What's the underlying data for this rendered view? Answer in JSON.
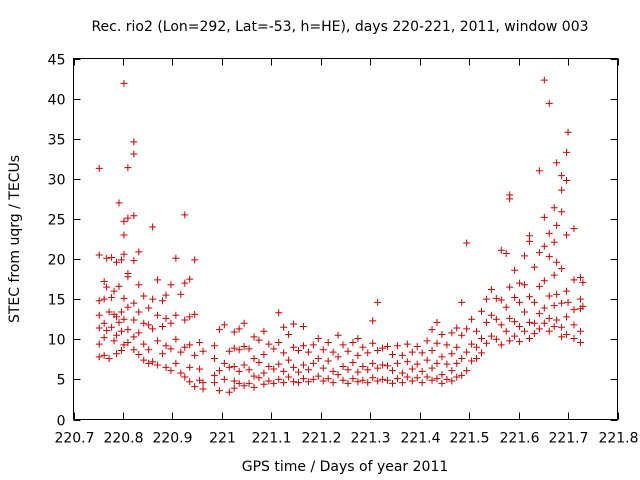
{
  "chart_data": {
    "type": "scatter",
    "title": "Rec. rio2 (Lon=292, Lat=-53, h=HE), days 220-221, 2011, window 003",
    "xlabel": "GPS time / Days of year 2011",
    "ylabel": "STEC from uqrg / TECUs",
    "xlim": [
      220.7,
      221.8
    ],
    "ylim": [
      0,
      45
    ],
    "x_ticks": [
      220.7,
      220.8,
      220.9,
      221,
      221.1,
      221.2,
      221.3,
      221.4,
      221.5,
      221.6,
      221.7,
      221.8
    ],
    "x_tick_labels": [
      "220.7",
      "220.8",
      "220.9",
      "221",
      "221.1",
      "221.2",
      "221.3",
      "221.4",
      "221.5",
      "221.6",
      "221.7",
      "221.8"
    ],
    "y_ticks": [
      0,
      5,
      10,
      15,
      20,
      25,
      30,
      35,
      40,
      45
    ],
    "y_tick_labels": [
      "0",
      "5",
      "10",
      "15",
      "20",
      "25",
      "30",
      "35",
      "40",
      "45"
    ],
    "grid": false,
    "legend": "none",
    "marker": "plus",
    "color": "#cc0000",
    "points": [
      [
        220.752,
        31.3
      ],
      [
        220.752,
        20.5
      ],
      [
        220.752,
        14.8
      ],
      [
        220.752,
        13.0
      ],
      [
        220.752,
        11.4
      ],
      [
        220.752,
        9.4
      ],
      [
        220.752,
        7.8
      ],
      [
        220.762,
        17.2
      ],
      [
        220.762,
        15.0
      ],
      [
        220.762,
        12.0
      ],
      [
        220.762,
        10.2
      ],
      [
        220.762,
        8.0
      ],
      [
        220.767,
        20.1
      ],
      [
        220.767,
        16.5
      ],
      [
        220.767,
        11.1
      ],
      [
        220.772,
        13.4
      ],
      [
        220.772,
        7.6
      ],
      [
        220.777,
        20.2
      ],
      [
        220.777,
        15.2
      ],
      [
        220.777,
        11.5
      ],
      [
        220.782,
        16.0
      ],
      [
        220.782,
        13.1
      ],
      [
        220.782,
        9.8
      ],
      [
        220.787,
        19.6
      ],
      [
        220.787,
        12.8
      ],
      [
        220.787,
        10.5
      ],
      [
        220.787,
        8.2
      ],
      [
        220.792,
        27.0
      ],
      [
        220.792,
        16.6
      ],
      [
        220.792,
        12.1
      ],
      [
        220.797,
        19.9
      ],
      [
        220.797,
        13.4
      ],
      [
        220.797,
        11.0
      ],
      [
        220.797,
        8.6
      ],
      [
        220.802,
        41.9
      ],
      [
        220.802,
        24.7
      ],
      [
        220.802,
        23.0
      ],
      [
        220.802,
        20.6
      ],
      [
        220.802,
        15.1
      ],
      [
        220.802,
        12.5
      ],
      [
        220.802,
        9.3
      ],
      [
        220.81,
        31.4
      ],
      [
        220.81,
        25.1
      ],
      [
        220.81,
        18.2
      ],
      [
        220.81,
        17.8
      ],
      [
        220.81,
        14.0
      ],
      [
        220.81,
        11.2
      ],
      [
        220.81,
        9.6
      ],
      [
        220.822,
        34.6
      ],
      [
        220.822,
        33.1
      ],
      [
        220.822,
        25.4
      ],
      [
        220.822,
        19.8
      ],
      [
        220.822,
        14.5
      ],
      [
        220.822,
        12.4
      ],
      [
        220.822,
        10.3
      ],
      [
        220.822,
        8.7
      ],
      [
        220.832,
        20.9
      ],
      [
        220.832,
        16.8
      ],
      [
        220.832,
        13.4
      ],
      [
        220.832,
        10.8
      ],
      [
        220.832,
        8.1
      ],
      [
        220.842,
        15.4
      ],
      [
        220.842,
        12.0
      ],
      [
        220.842,
        9.4
      ],
      [
        220.842,
        7.4
      ],
      [
        220.852,
        13.9
      ],
      [
        220.852,
        11.8
      ],
      [
        220.852,
        8.7
      ],
      [
        220.852,
        7.0
      ],
      [
        220.86,
        24.0
      ],
      [
        220.86,
        15.0
      ],
      [
        220.86,
        11.3
      ],
      [
        220.86,
        7.2
      ],
      [
        220.87,
        17.4
      ],
      [
        220.87,
        13.0
      ],
      [
        220.87,
        9.8
      ],
      [
        220.87,
        6.8
      ],
      [
        220.88,
        14.8
      ],
      [
        220.88,
        11.6
      ],
      [
        220.88,
        8.2
      ],
      [
        220.887,
        15.5
      ],
      [
        220.887,
        12.6
      ],
      [
        220.887,
        9.2
      ],
      [
        220.887,
        6.5
      ],
      [
        220.897,
        16.8
      ],
      [
        220.897,
        12.0
      ],
      [
        220.897,
        8.8
      ],
      [
        220.897,
        6.1
      ],
      [
        220.907,
        20.1
      ],
      [
        220.907,
        13.0
      ],
      [
        220.907,
        10.0
      ],
      [
        220.907,
        7.0
      ],
      [
        220.917,
        15.6
      ],
      [
        220.917,
        8.4
      ],
      [
        220.917,
        5.8
      ],
      [
        220.925,
        25.5
      ],
      [
        220.925,
        17.0
      ],
      [
        220.925,
        12.4
      ],
      [
        220.925,
        9.0
      ],
      [
        220.925,
        5.3
      ],
      [
        220.935,
        17.5
      ],
      [
        220.935,
        12.8
      ],
      [
        220.935,
        9.3
      ],
      [
        220.935,
        6.5
      ],
      [
        220.935,
        4.7
      ],
      [
        220.945,
        19.9
      ],
      [
        220.945,
        13.1
      ],
      [
        220.945,
        8.0
      ],
      [
        220.945,
        4.1
      ],
      [
        220.955,
        9.6
      ],
      [
        220.955,
        6.3
      ],
      [
        220.955,
        4.9
      ],
      [
        220.962,
        8.5
      ],
      [
        220.962,
        4.6
      ],
      [
        220.962,
        3.8
      ],
      [
        220.985,
        9.2
      ],
      [
        220.985,
        7.6
      ],
      [
        220.985,
        5.5
      ],
      [
        220.985,
        4.6
      ],
      [
        220.995,
        11.2
      ],
      [
        220.995,
        6.1
      ],
      [
        220.995,
        3.6
      ],
      [
        221.005,
        11.8
      ],
      [
        221.005,
        7.0
      ],
      [
        221.005,
        5.0
      ],
      [
        221.015,
        8.5
      ],
      [
        221.015,
        6.5
      ],
      [
        221.015,
        3.4
      ],
      [
        221.025,
        10.9
      ],
      [
        221.025,
        8.9
      ],
      [
        221.025,
        6.6
      ],
      [
        221.025,
        4.8
      ],
      [
        221.025,
        3.9
      ],
      [
        221.035,
        11.3
      ],
      [
        221.035,
        8.7
      ],
      [
        221.035,
        6.0
      ],
      [
        221.035,
        4.5
      ],
      [
        221.045,
        12.0
      ],
      [
        221.045,
        9.1
      ],
      [
        221.045,
        6.8
      ],
      [
        221.045,
        4.2
      ],
      [
        221.055,
        8.8
      ],
      [
        221.055,
        6.2
      ],
      [
        221.055,
        4.5
      ],
      [
        221.065,
        10.3
      ],
      [
        221.065,
        7.6
      ],
      [
        221.065,
        5.4
      ],
      [
        221.065,
        4.0
      ],
      [
        221.075,
        9.9
      ],
      [
        221.075,
        7.1
      ],
      [
        221.075,
        5.2
      ],
      [
        221.085,
        11.0
      ],
      [
        221.085,
        8.1
      ],
      [
        221.085,
        5.8
      ],
      [
        221.085,
        4.4
      ],
      [
        221.095,
        9.4
      ],
      [
        221.095,
        6.6
      ],
      [
        221.095,
        4.8
      ],
      [
        221.105,
        8.8
      ],
      [
        221.105,
        6.3
      ],
      [
        221.105,
        4.5
      ],
      [
        221.115,
        13.3
      ],
      [
        221.115,
        9.6
      ],
      [
        221.115,
        6.9
      ],
      [
        221.115,
        5.0
      ],
      [
        221.125,
        11.5
      ],
      [
        221.125,
        8.3
      ],
      [
        221.125,
        6.0
      ],
      [
        221.125,
        4.6
      ],
      [
        221.135,
        10.6
      ],
      [
        221.135,
        7.4
      ],
      [
        221.135,
        5.3
      ],
      [
        221.145,
        11.9
      ],
      [
        221.145,
        9.0
      ],
      [
        221.145,
        6.5
      ],
      [
        221.145,
        4.7
      ],
      [
        221.155,
        8.6
      ],
      [
        221.155,
        5.9
      ],
      [
        221.155,
        4.6
      ],
      [
        221.165,
        11.6
      ],
      [
        221.165,
        9.2
      ],
      [
        221.165,
        6.8
      ],
      [
        221.165,
        5.1
      ],
      [
        221.175,
        8.4
      ],
      [
        221.175,
        6.2
      ],
      [
        221.175,
        4.7
      ],
      [
        221.185,
        9.3
      ],
      [
        221.185,
        7.0
      ],
      [
        221.185,
        5.0
      ],
      [
        221.195,
        10.1
      ],
      [
        221.195,
        7.6
      ],
      [
        221.195,
        5.4
      ],
      [
        221.205,
        8.7
      ],
      [
        221.205,
        6.4
      ],
      [
        221.205,
        4.8
      ],
      [
        221.215,
        9.6
      ],
      [
        221.215,
        7.3
      ],
      [
        221.215,
        5.1
      ],
      [
        221.225,
        8.4
      ],
      [
        221.225,
        6.0
      ],
      [
        221.225,
        4.6
      ],
      [
        221.235,
        10.5
      ],
      [
        221.235,
        7.8
      ],
      [
        221.235,
        5.6
      ],
      [
        221.245,
        9.3
      ],
      [
        221.245,
        6.6
      ],
      [
        221.245,
        4.9
      ],
      [
        221.255,
        8.5
      ],
      [
        221.255,
        6.2
      ],
      [
        221.255,
        4.5
      ],
      [
        221.265,
        9.6
      ],
      [
        221.265,
        7.1
      ],
      [
        221.265,
        5.1
      ],
      [
        221.275,
        10.1
      ],
      [
        221.275,
        8.0
      ],
      [
        221.275,
        5.9
      ],
      [
        221.275,
        4.7
      ],
      [
        221.285,
        9.0
      ],
      [
        221.285,
        6.6
      ],
      [
        221.285,
        4.9
      ],
      [
        221.295,
        8.3
      ],
      [
        221.295,
        6.2
      ],
      [
        221.295,
        4.6
      ],
      [
        221.305,
        12.3
      ],
      [
        221.305,
        9.5
      ],
      [
        221.305,
        7.0
      ],
      [
        221.305,
        5.2
      ],
      [
        221.315,
        14.6
      ],
      [
        221.315,
        8.6
      ],
      [
        221.315,
        6.4
      ],
      [
        221.315,
        4.8
      ],
      [
        221.325,
        8.9
      ],
      [
        221.325,
        6.8
      ],
      [
        221.325,
        5.0
      ],
      [
        221.335,
        9.1
      ],
      [
        221.335,
        6.7
      ],
      [
        221.335,
        4.9
      ],
      [
        221.345,
        8.1
      ],
      [
        221.345,
        6.1
      ],
      [
        221.345,
        4.5
      ],
      [
        221.355,
        9.2
      ],
      [
        221.355,
        7.0
      ],
      [
        221.355,
        5.1
      ],
      [
        221.365,
        8.0
      ],
      [
        221.365,
        5.8
      ],
      [
        221.365,
        4.6
      ],
      [
        221.375,
        9.4
      ],
      [
        221.375,
        7.2
      ],
      [
        221.375,
        5.3
      ],
      [
        221.385,
        8.4
      ],
      [
        221.385,
        6.3
      ],
      [
        221.385,
        4.8
      ],
      [
        221.395,
        9.1
      ],
      [
        221.395,
        6.9
      ],
      [
        221.395,
        5.2
      ],
      [
        221.405,
        8.3
      ],
      [
        221.405,
        6.0
      ],
      [
        221.405,
        4.6
      ],
      [
        221.415,
        9.8
      ],
      [
        221.415,
        7.4
      ],
      [
        221.415,
        5.3
      ],
      [
        221.425,
        11.2
      ],
      [
        221.425,
        8.6
      ],
      [
        221.425,
        6.4
      ],
      [
        221.425,
        4.9
      ],
      [
        221.435,
        12.1
      ],
      [
        221.435,
        9.5
      ],
      [
        221.435,
        7.0
      ],
      [
        221.435,
        5.1
      ],
      [
        221.445,
        10.6
      ],
      [
        221.445,
        7.8
      ],
      [
        221.445,
        5.6
      ],
      [
        221.445,
        4.5
      ],
      [
        221.455,
        9.3
      ],
      [
        221.455,
        6.9
      ],
      [
        221.455,
        5.0
      ],
      [
        221.465,
        10.8
      ],
      [
        221.465,
        8.2
      ],
      [
        221.465,
        6.1
      ],
      [
        221.465,
        4.8
      ],
      [
        221.475,
        11.4
      ],
      [
        221.475,
        9.0
      ],
      [
        221.475,
        7.0
      ],
      [
        221.475,
        5.3
      ],
      [
        221.485,
        14.6
      ],
      [
        221.485,
        10.5
      ],
      [
        221.485,
        7.6
      ],
      [
        221.485,
        5.5
      ],
      [
        221.495,
        22.0
      ],
      [
        221.495,
        11.3
      ],
      [
        221.495,
        8.4
      ],
      [
        221.495,
        6.1
      ],
      [
        221.505,
        12.5
      ],
      [
        221.505,
        9.4
      ],
      [
        221.505,
        7.3
      ],
      [
        221.515,
        11.0
      ],
      [
        221.515,
        9.0
      ],
      [
        221.515,
        7.6
      ],
      [
        221.525,
        13.5
      ],
      [
        221.525,
        10.1
      ],
      [
        221.525,
        8.3
      ],
      [
        221.535,
        15.0
      ],
      [
        221.535,
        12.1
      ],
      [
        221.535,
        9.5
      ],
      [
        221.545,
        16.2
      ],
      [
        221.545,
        13.0
      ],
      [
        221.545,
        10.4
      ],
      [
        221.555,
        15.1
      ],
      [
        221.555,
        12.5
      ],
      [
        221.555,
        10.0
      ],
      [
        221.565,
        21.1
      ],
      [
        221.565,
        14.9
      ],
      [
        221.565,
        11.8
      ],
      [
        221.565,
        9.3
      ],
      [
        221.575,
        20.7
      ],
      [
        221.575,
        14.0
      ],
      [
        221.575,
        11.0
      ],
      [
        221.582,
        28.0
      ],
      [
        221.582,
        27.5
      ],
      [
        221.582,
        16.5
      ],
      [
        221.582,
        12.6
      ],
      [
        221.582,
        9.8
      ],
      [
        221.592,
        18.6
      ],
      [
        221.592,
        15.2
      ],
      [
        221.592,
        12.2
      ],
      [
        221.592,
        10.4
      ],
      [
        221.602,
        17.0
      ],
      [
        221.602,
        14.6
      ],
      [
        221.602,
        11.6
      ],
      [
        221.602,
        9.7
      ],
      [
        221.612,
        20.4
      ],
      [
        221.612,
        16.8
      ],
      [
        221.612,
        13.4
      ],
      [
        221.612,
        11.0
      ],
      [
        221.622,
        22.9
      ],
      [
        221.622,
        22.2
      ],
      [
        221.622,
        15.3
      ],
      [
        221.622,
        12.1
      ],
      [
        221.622,
        10.1
      ],
      [
        221.632,
        19.0
      ],
      [
        221.632,
        14.6
      ],
      [
        221.632,
        12.0
      ],
      [
        221.632,
        10.7
      ],
      [
        221.642,
        31.0
      ],
      [
        221.642,
        20.8
      ],
      [
        221.642,
        16.6
      ],
      [
        221.642,
        13.2
      ],
      [
        221.642,
        11.3
      ],
      [
        221.652,
        42.3
      ],
      [
        221.652,
        25.2
      ],
      [
        221.652,
        21.6
      ],
      [
        221.652,
        17.3
      ],
      [
        221.652,
        13.9
      ],
      [
        221.652,
        12.0
      ],
      [
        221.662,
        39.4
      ],
      [
        221.662,
        23.2
      ],
      [
        221.662,
        20.3
      ],
      [
        221.662,
        15.4
      ],
      [
        221.662,
        12.6
      ],
      [
        221.662,
        11.0
      ],
      [
        221.672,
        26.4
      ],
      [
        221.672,
        22.1
      ],
      [
        221.672,
        18.0
      ],
      [
        221.672,
        14.2
      ],
      [
        221.672,
        11.6
      ],
      [
        221.677,
        32.0
      ],
      [
        221.677,
        24.2
      ],
      [
        221.677,
        19.6
      ],
      [
        221.677,
        15.6
      ],
      [
        221.677,
        12.4
      ],
      [
        221.687,
        30.4
      ],
      [
        221.687,
        28.6
      ],
      [
        221.687,
        25.9
      ],
      [
        221.687,
        18.8
      ],
      [
        221.687,
        14.5
      ],
      [
        221.687,
        11.5
      ],
      [
        221.687,
        10.3
      ],
      [
        221.697,
        33.3
      ],
      [
        221.697,
        29.8
      ],
      [
        221.697,
        23.0
      ],
      [
        221.697,
        16.0
      ],
      [
        221.697,
        12.8
      ],
      [
        221.697,
        10.6
      ],
      [
        221.7,
        35.8
      ],
      [
        221.7,
        14.6
      ],
      [
        221.712,
        23.8
      ],
      [
        221.712,
        17.4
      ],
      [
        221.712,
        13.7
      ],
      [
        221.712,
        11.8
      ],
      [
        221.712,
        10.1
      ],
      [
        221.725,
        17.7
      ],
      [
        221.725,
        15.0
      ],
      [
        221.725,
        13.8
      ],
      [
        221.725,
        11.0
      ],
      [
        221.725,
        9.6
      ],
      [
        221.73,
        17.1
      ],
      [
        221.73,
        14.1
      ]
    ]
  }
}
